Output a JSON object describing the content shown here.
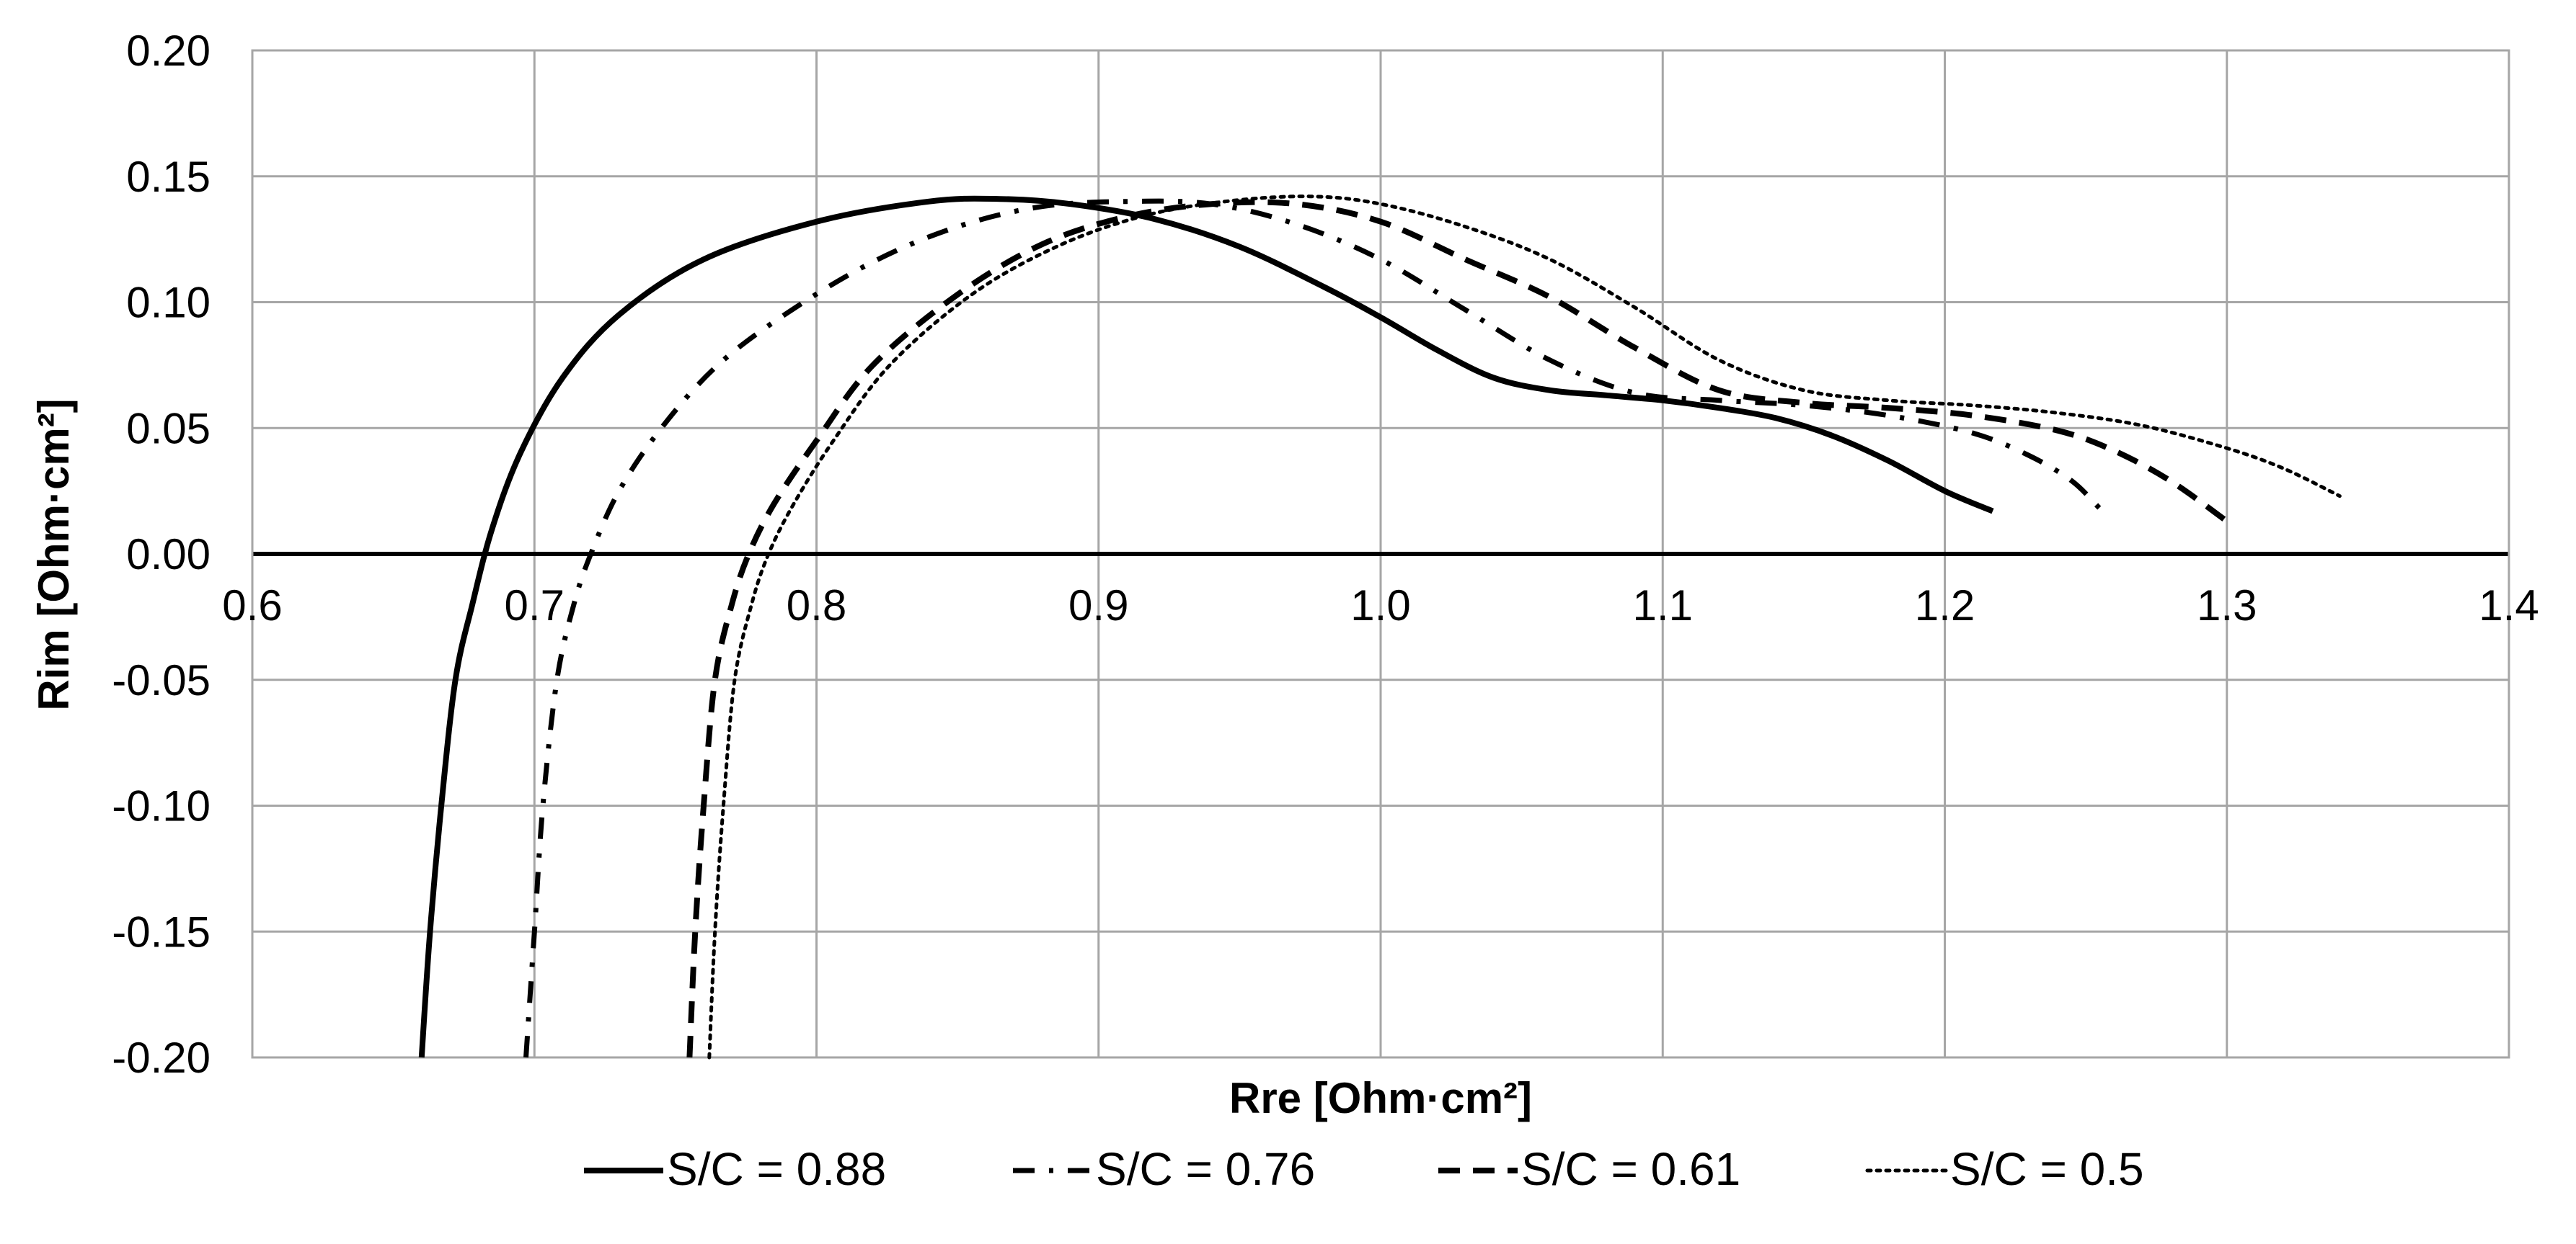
{
  "chart_data": {
    "type": "line",
    "title": "",
    "xlabel": "Rre [Ohm·cm²]",
    "ylabel": "Rim [Ohm·cm²]",
    "xlim": [
      0.6,
      1.4
    ],
    "ylim": [
      -0.2,
      0.2
    ],
    "x_ticks": [
      0.6,
      0.7,
      0.8,
      0.9,
      1.0,
      1.1,
      1.2,
      1.3,
      1.4
    ],
    "x_tick_labels": [
      "0.6",
      "0.7",
      "0.8",
      "0.9",
      "1.0",
      "1.1",
      "1.2",
      "1.3",
      "1.4"
    ],
    "y_ticks": [
      0.2,
      0.15,
      0.1,
      0.05,
      0.0,
      -0.05,
      -0.1,
      -0.15,
      -0.2
    ],
    "y_tick_labels": [
      "0.20",
      "0.15",
      "0.10",
      "0.05",
      "0.00",
      "-0.05",
      "-0.10",
      "-0.15",
      "-0.20"
    ],
    "grid": true,
    "legend_position": "bottom",
    "series": [
      {
        "name": "S/C = 0.88",
        "style": "solid",
        "color": "#000000",
        "x": [
          0.66,
          0.663,
          0.667,
          0.672,
          0.678,
          0.685,
          0.695,
          0.71,
          0.73,
          0.76,
          0.8,
          0.84,
          0.865,
          0.89,
          0.92,
          0.95,
          0.98,
          1.0,
          1.02,
          1.04,
          1.06,
          1.08,
          1.1,
          1.12,
          1.14,
          1.16,
          1.18,
          1.2,
          1.217
        ],
        "y": [
          -0.2,
          -0.15,
          -0.1,
          -0.05,
          -0.02,
          0.01,
          0.04,
          0.07,
          0.095,
          0.117,
          0.132,
          0.14,
          0.141,
          0.139,
          0.133,
          0.122,
          0.106,
          0.094,
          0.081,
          0.07,
          0.065,
          0.063,
          0.061,
          0.058,
          0.054,
          0.047,
          0.037,
          0.025,
          0.017
        ]
      },
      {
        "name": "S/C = 0.76",
        "style": "dashdot",
        "color": "#000000",
        "x": [
          0.697,
          0.7,
          0.703,
          0.708,
          0.714,
          0.72,
          0.73,
          0.745,
          0.765,
          0.79,
          0.82,
          0.85,
          0.88,
          0.91,
          0.94,
          0.97,
          1.0,
          1.03,
          1.06,
          1.09,
          1.12,
          1.15,
          1.18,
          1.21,
          1.23,
          1.245,
          1.255
        ],
        "y": [
          -0.2,
          -0.15,
          -0.1,
          -0.05,
          -0.02,
          0.0,
          0.025,
          0.05,
          0.075,
          0.096,
          0.116,
          0.13,
          0.138,
          0.14,
          0.139,
          0.131,
          0.117,
          0.097,
          0.077,
          0.064,
          0.061,
          0.059,
          0.055,
          0.048,
          0.039,
          0.029,
          0.018
        ]
      },
      {
        "name": "S/C = 0.61",
        "style": "dashed",
        "color": "#000000",
        "x": [
          0.755,
          0.757,
          0.76,
          0.764,
          0.77,
          0.776,
          0.785,
          0.8,
          0.82,
          0.85,
          0.88,
          0.91,
          0.94,
          0.97,
          1.0,
          1.03,
          1.06,
          1.09,
          1.12,
          1.15,
          1.18,
          1.21,
          1.24,
          1.26,
          1.28,
          1.3
        ],
        "y": [
          -0.2,
          -0.15,
          -0.1,
          -0.05,
          -0.02,
          0.0,
          0.02,
          0.045,
          0.075,
          0.103,
          0.123,
          0.134,
          0.139,
          0.139,
          0.132,
          0.117,
          0.102,
          0.082,
          0.065,
          0.06,
          0.058,
          0.055,
          0.049,
          0.041,
          0.029,
          0.013
        ]
      },
      {
        "name": "S/C = 0.5",
        "style": "dotted",
        "color": "#000000",
        "x": [
          0.762,
          0.764,
          0.767,
          0.771,
          0.777,
          0.783,
          0.792,
          0.806,
          0.826,
          0.855,
          0.885,
          0.915,
          0.945,
          0.975,
          1.0,
          1.03,
          1.06,
          1.09,
          1.12,
          1.15,
          1.18,
          1.21,
          1.24,
          1.27,
          1.3,
          1.32,
          1.34
        ],
        "y": [
          -0.2,
          -0.15,
          -0.1,
          -0.05,
          -0.02,
          0.0,
          0.02,
          0.045,
          0.075,
          0.103,
          0.122,
          0.134,
          0.14,
          0.142,
          0.139,
          0.13,
          0.117,
          0.098,
          0.077,
          0.065,
          0.061,
          0.059,
          0.056,
          0.051,
          0.042,
          0.034,
          0.023
        ]
      }
    ]
  }
}
